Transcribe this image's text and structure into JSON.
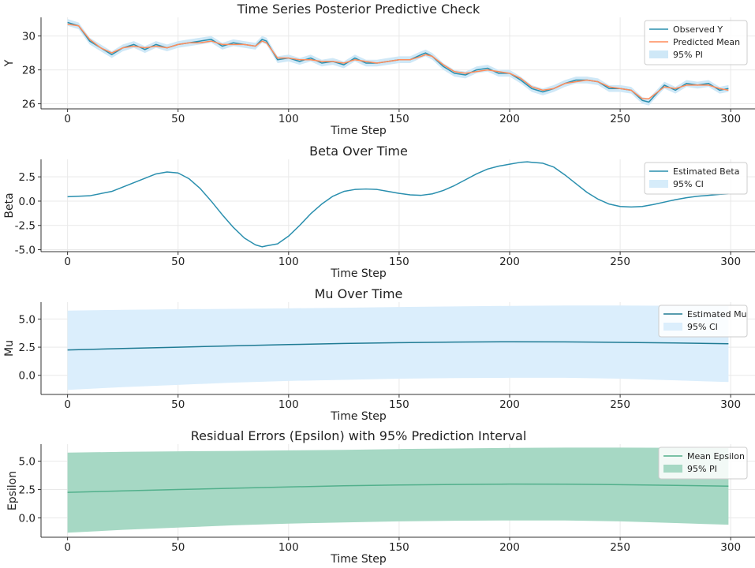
{
  "chart_data": [
    {
      "type": "line",
      "title": "Time Series Posterior Predictive Check",
      "xlabel": "Time Step",
      "ylabel": "Y",
      "xlim": [
        -12,
        311
      ],
      "ylim": [
        25.7,
        31.1
      ],
      "xticks": [
        0,
        50,
        100,
        150,
        200,
        250,
        300
      ],
      "yticks": [
        26,
        28,
        30
      ],
      "grid": true,
      "legend_position": "top-right",
      "x": [
        0,
        5,
        10,
        15,
        20,
        25,
        30,
        35,
        40,
        45,
        50,
        55,
        60,
        65,
        70,
        75,
        80,
        85,
        88,
        90,
        95,
        100,
        105,
        110,
        115,
        120,
        125,
        130,
        135,
        140,
        145,
        150,
        155,
        160,
        162,
        165,
        170,
        175,
        180,
        185,
        190,
        195,
        200,
        205,
        210,
        215,
        220,
        225,
        230,
        235,
        240,
        245,
        250,
        255,
        260,
        263,
        265,
        270,
        275,
        280,
        285,
        290,
        295,
        299
      ],
      "series": [
        {
          "name": "Observed Y",
          "color": "#2a8fae",
          "values": [
            30.8,
            30.6,
            29.7,
            29.3,
            28.9,
            29.3,
            29.5,
            29.2,
            29.5,
            29.3,
            29.5,
            29.6,
            29.7,
            29.8,
            29.4,
            29.6,
            29.5,
            29.4,
            29.8,
            29.7,
            28.6,
            28.7,
            28.5,
            28.7,
            28.4,
            28.5,
            28.3,
            28.7,
            28.4,
            28.4,
            28.5,
            28.6,
            28.6,
            28.9,
            29.0,
            28.8,
            28.2,
            27.8,
            27.7,
            28.0,
            28.1,
            27.8,
            27.8,
            27.4,
            26.9,
            26.7,
            26.9,
            27.2,
            27.4,
            27.4,
            27.3,
            26.9,
            26.9,
            26.8,
            26.2,
            26.1,
            26.4,
            27.1,
            26.8,
            27.2,
            27.1,
            27.2,
            26.8,
            26.9
          ]
        },
        {
          "name": "Predicted Mean",
          "color": "#ff8c5a",
          "values": [
            30.7,
            30.6,
            29.8,
            29.3,
            29.0,
            29.3,
            29.4,
            29.3,
            29.4,
            29.3,
            29.5,
            29.6,
            29.6,
            29.7,
            29.5,
            29.5,
            29.5,
            29.4,
            29.7,
            29.6,
            28.7,
            28.7,
            28.6,
            28.6,
            28.5,
            28.5,
            28.4,
            28.6,
            28.5,
            28.4,
            28.5,
            28.6,
            28.6,
            28.8,
            28.9,
            28.8,
            28.3,
            27.9,
            27.8,
            27.9,
            28.0,
            27.9,
            27.8,
            27.5,
            27.0,
            26.8,
            26.9,
            27.2,
            27.3,
            27.4,
            27.3,
            27.0,
            26.9,
            26.8,
            26.3,
            26.3,
            26.5,
            27.0,
            26.9,
            27.1,
            27.1,
            27.1,
            26.9,
            26.8
          ]
        }
      ],
      "band": {
        "name": "95% PI",
        "color": "#cfe8f7",
        "halfwidth": 0.2
      }
    },
    {
      "type": "line",
      "title": "Beta Over Time",
      "xlabel": "Time Step",
      "ylabel": "Beta",
      "xlim": [
        -12,
        311
      ],
      "ylim": [
        -5.2,
        4.3
      ],
      "xticks": [
        0,
        50,
        100,
        150,
        200,
        250,
        300
      ],
      "yticks": [
        -5.0,
        -2.5,
        0.0,
        2.5
      ],
      "grid": true,
      "legend_position": "top-right",
      "x": [
        0,
        10,
        20,
        30,
        40,
        45,
        50,
        55,
        60,
        65,
        70,
        75,
        80,
        85,
        88,
        90,
        95,
        100,
        105,
        110,
        115,
        120,
        125,
        130,
        135,
        140,
        145,
        150,
        155,
        160,
        165,
        170,
        175,
        180,
        185,
        190,
        195,
        200,
        205,
        208,
        210,
        215,
        220,
        225,
        230,
        235,
        240,
        245,
        250,
        255,
        260,
        265,
        270,
        275,
        280,
        285,
        290,
        295,
        299
      ],
      "series": [
        {
          "name": "Estimated Beta",
          "color": "#2a8fae",
          "values": [
            0.45,
            0.55,
            1.0,
            1.9,
            2.8,
            3.0,
            2.9,
            2.3,
            1.3,
            0.0,
            -1.4,
            -2.7,
            -3.8,
            -4.5,
            -4.7,
            -4.6,
            -4.4,
            -3.6,
            -2.5,
            -1.3,
            -0.3,
            0.5,
            1.0,
            1.2,
            1.25,
            1.2,
            1.0,
            0.8,
            0.65,
            0.6,
            0.75,
            1.1,
            1.6,
            2.2,
            2.8,
            3.3,
            3.6,
            3.8,
            4.0,
            4.05,
            4.0,
            3.9,
            3.5,
            2.7,
            1.8,
            0.9,
            0.2,
            -0.3,
            -0.55,
            -0.6,
            -0.55,
            -0.35,
            -0.1,
            0.15,
            0.35,
            0.5,
            0.6,
            0.7,
            0.75
          ]
        }
      ],
      "band": {
        "name": "95% CI",
        "color": "#d6ecfa",
        "halfwidth": 0.05
      }
    },
    {
      "type": "line",
      "title": "Mu Over Time",
      "xlabel": "Time Step",
      "ylabel": "Mu",
      "xlim": [
        -12,
        311
      ],
      "ylim": [
        -1.7,
        6.5
      ],
      "xticks": [
        0,
        50,
        100,
        150,
        200,
        250,
        300
      ],
      "yticks": [
        0.0,
        2.5,
        5.0
      ],
      "grid": true,
      "legend_position": "top-right",
      "x": [
        0,
        25,
        50,
        75,
        100,
        125,
        150,
        175,
        200,
        225,
        250,
        275,
        299
      ],
      "series": [
        {
          "name": "Estimated Mu",
          "color": "#1f7b94",
          "values": [
            2.25,
            2.38,
            2.5,
            2.62,
            2.73,
            2.83,
            2.9,
            2.95,
            2.98,
            2.97,
            2.93,
            2.87,
            2.8
          ]
        }
      ],
      "band": {
        "name": "95% CI",
        "color": "#dbeefc",
        "lower": [
          -1.3,
          -1.05,
          -0.85,
          -0.65,
          -0.5,
          -0.4,
          -0.3,
          -0.25,
          -0.22,
          -0.22,
          -0.3,
          -0.45,
          -0.6
        ],
        "upper": [
          5.75,
          5.82,
          5.87,
          5.9,
          5.95,
          6.0,
          6.07,
          6.12,
          6.17,
          6.2,
          6.2,
          6.18,
          6.15
        ]
      }
    },
    {
      "type": "area",
      "title": "Residual Errors (Epsilon) with 95% Prediction Interval",
      "xlabel": "Time Step",
      "ylabel": "Epsilon",
      "xlim": [
        -12,
        311
      ],
      "ylim": [
        -1.7,
        6.5
      ],
      "xticks": [
        0,
        50,
        100,
        150,
        200,
        250,
        300
      ],
      "yticks": [
        0.0,
        2.5,
        5.0
      ],
      "grid": true,
      "legend_position": "top-right",
      "x": [
        0,
        25,
        50,
        75,
        100,
        125,
        150,
        175,
        200,
        225,
        250,
        275,
        299
      ],
      "series": [
        {
          "name": "Mean Epsilon",
          "color": "#52b08c",
          "values": [
            2.25,
            2.38,
            2.5,
            2.62,
            2.73,
            2.83,
            2.9,
            2.95,
            2.98,
            2.97,
            2.93,
            2.87,
            2.8
          ]
        }
      ],
      "band": {
        "name": "95% PI",
        "color": "#a6d8c4",
        "lower": [
          -1.3,
          -1.05,
          -0.85,
          -0.65,
          -0.5,
          -0.4,
          -0.3,
          -0.25,
          -0.22,
          -0.22,
          -0.3,
          -0.45,
          -0.6
        ],
        "upper": [
          5.75,
          5.82,
          5.87,
          5.9,
          5.95,
          6.0,
          6.07,
          6.12,
          6.17,
          6.2,
          6.2,
          6.18,
          6.15
        ]
      }
    }
  ]
}
